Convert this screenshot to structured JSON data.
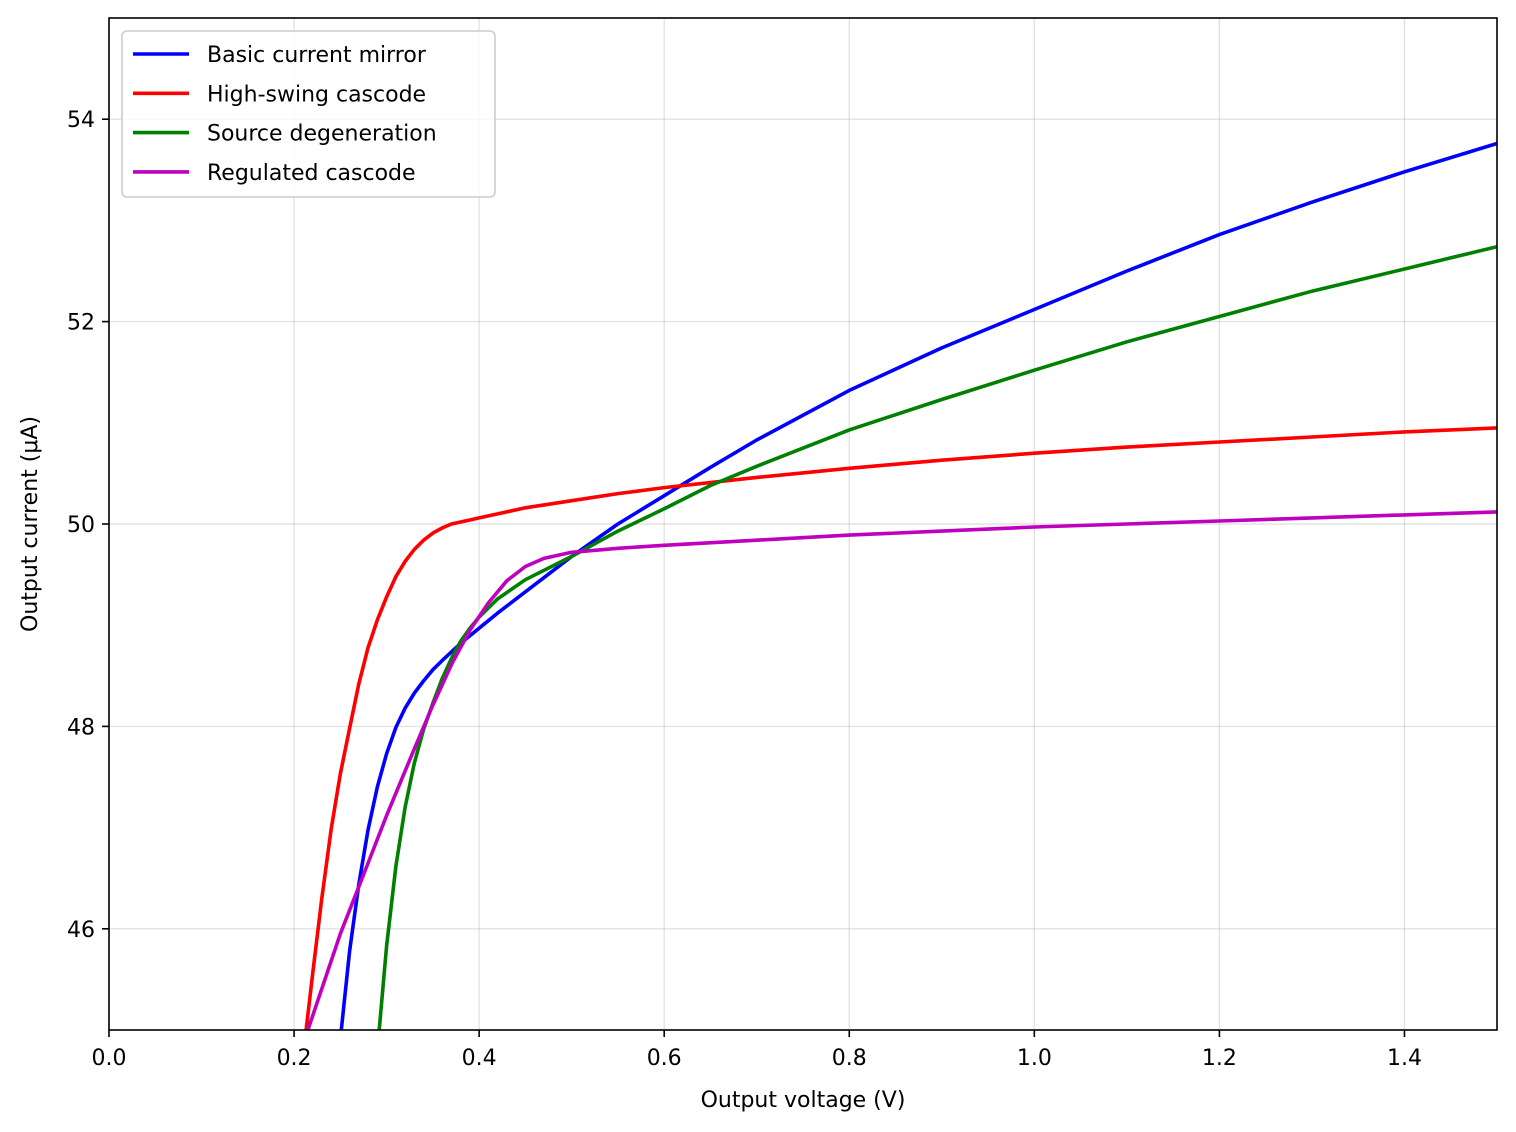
{
  "chart_data": {
    "type": "line",
    "xlabel": "Output voltage (V)",
    "ylabel": "Output current (μA)",
    "xlim": [
      0.0,
      1.5
    ],
    "ylim": [
      45.0,
      55.0
    ],
    "xticks": [
      0.0,
      0.2,
      0.4,
      0.6,
      0.8,
      1.0,
      1.2,
      1.4
    ],
    "xtick_labels": [
      "0.0",
      "0.2",
      "0.4",
      "0.6",
      "0.8",
      "1.0",
      "1.2",
      "1.4"
    ],
    "yticks": [
      46,
      48,
      50,
      52,
      54
    ],
    "ytick_labels": [
      "46",
      "48",
      "50",
      "52",
      "54"
    ],
    "grid": true,
    "legend_position": "top-left",
    "series": [
      {
        "name": "Basic current mirror",
        "color": "#0000ff",
        "x": [
          0.251,
          0.26,
          0.27,
          0.28,
          0.29,
          0.3,
          0.31,
          0.32,
          0.33,
          0.34,
          0.35,
          0.36,
          0.38,
          0.4,
          0.42,
          0.45,
          0.5,
          0.55,
          0.6,
          0.65,
          0.7,
          0.8,
          0.9,
          1.0,
          1.1,
          1.2,
          1.3,
          1.4,
          1.5
        ],
        "y": [
          45.0,
          45.78,
          46.44,
          46.98,
          47.4,
          47.73,
          47.99,
          48.18,
          48.33,
          48.45,
          48.56,
          48.65,
          48.82,
          48.97,
          49.12,
          49.33,
          49.68,
          50.0,
          50.28,
          50.56,
          50.83,
          51.32,
          51.74,
          52.12,
          52.5,
          52.86,
          53.18,
          53.48,
          53.76
        ]
      },
      {
        "name": "High-swing cascode",
        "color": "#ff0000",
        "x": [
          0.213,
          0.22,
          0.23,
          0.24,
          0.25,
          0.26,
          0.27,
          0.28,
          0.29,
          0.3,
          0.31,
          0.32,
          0.33,
          0.34,
          0.35,
          0.36,
          0.37,
          0.38,
          0.39,
          0.4,
          0.42,
          0.45,
          0.5,
          0.55,
          0.6,
          0.7,
          0.8,
          0.9,
          1.0,
          1.1,
          1.2,
          1.3,
          1.4,
          1.5
        ],
        "y": [
          45.0,
          45.55,
          46.3,
          46.98,
          47.53,
          47.98,
          48.42,
          48.78,
          49.05,
          49.28,
          49.48,
          49.63,
          49.75,
          49.84,
          49.91,
          49.96,
          50.0,
          50.02,
          50.04,
          50.06,
          50.1,
          50.16,
          50.23,
          50.3,
          50.36,
          50.46,
          50.55,
          50.63,
          50.7,
          50.76,
          50.81,
          50.86,
          50.91,
          50.95
        ]
      },
      {
        "name": "Source degeneration",
        "color": "#008000",
        "x": [
          0.292,
          0.3,
          0.31,
          0.32,
          0.33,
          0.34,
          0.35,
          0.36,
          0.37,
          0.38,
          0.39,
          0.4,
          0.42,
          0.45,
          0.5,
          0.55,
          0.6,
          0.65,
          0.7,
          0.8,
          0.9,
          1.0,
          1.1,
          1.2,
          1.3,
          1.4,
          1.5
        ],
        "y": [
          45.0,
          45.83,
          46.62,
          47.2,
          47.64,
          47.97,
          48.23,
          48.47,
          48.67,
          48.84,
          48.97,
          49.08,
          49.26,
          49.45,
          49.68,
          49.93,
          50.15,
          50.38,
          50.57,
          50.93,
          51.23,
          51.52,
          51.8,
          52.05,
          52.3,
          52.52,
          52.74
        ]
      },
      {
        "name": "Regulated cascode",
        "color": "#bf00bf",
        "x": [
          0.215,
          0.25,
          0.28,
          0.3,
          0.33,
          0.35,
          0.37,
          0.39,
          0.41,
          0.43,
          0.45,
          0.47,
          0.5,
          0.55,
          0.6,
          0.7,
          0.8,
          0.9,
          1.0,
          1.1,
          1.2,
          1.3,
          1.4,
          1.5
        ],
        "y": [
          45.0,
          45.95,
          46.65,
          47.12,
          47.78,
          48.21,
          48.61,
          48.95,
          49.22,
          49.44,
          49.58,
          49.66,
          49.72,
          49.76,
          49.79,
          49.84,
          49.89,
          49.93,
          49.97,
          50.0,
          50.03,
          50.06,
          50.09,
          50.12
        ]
      }
    ]
  }
}
